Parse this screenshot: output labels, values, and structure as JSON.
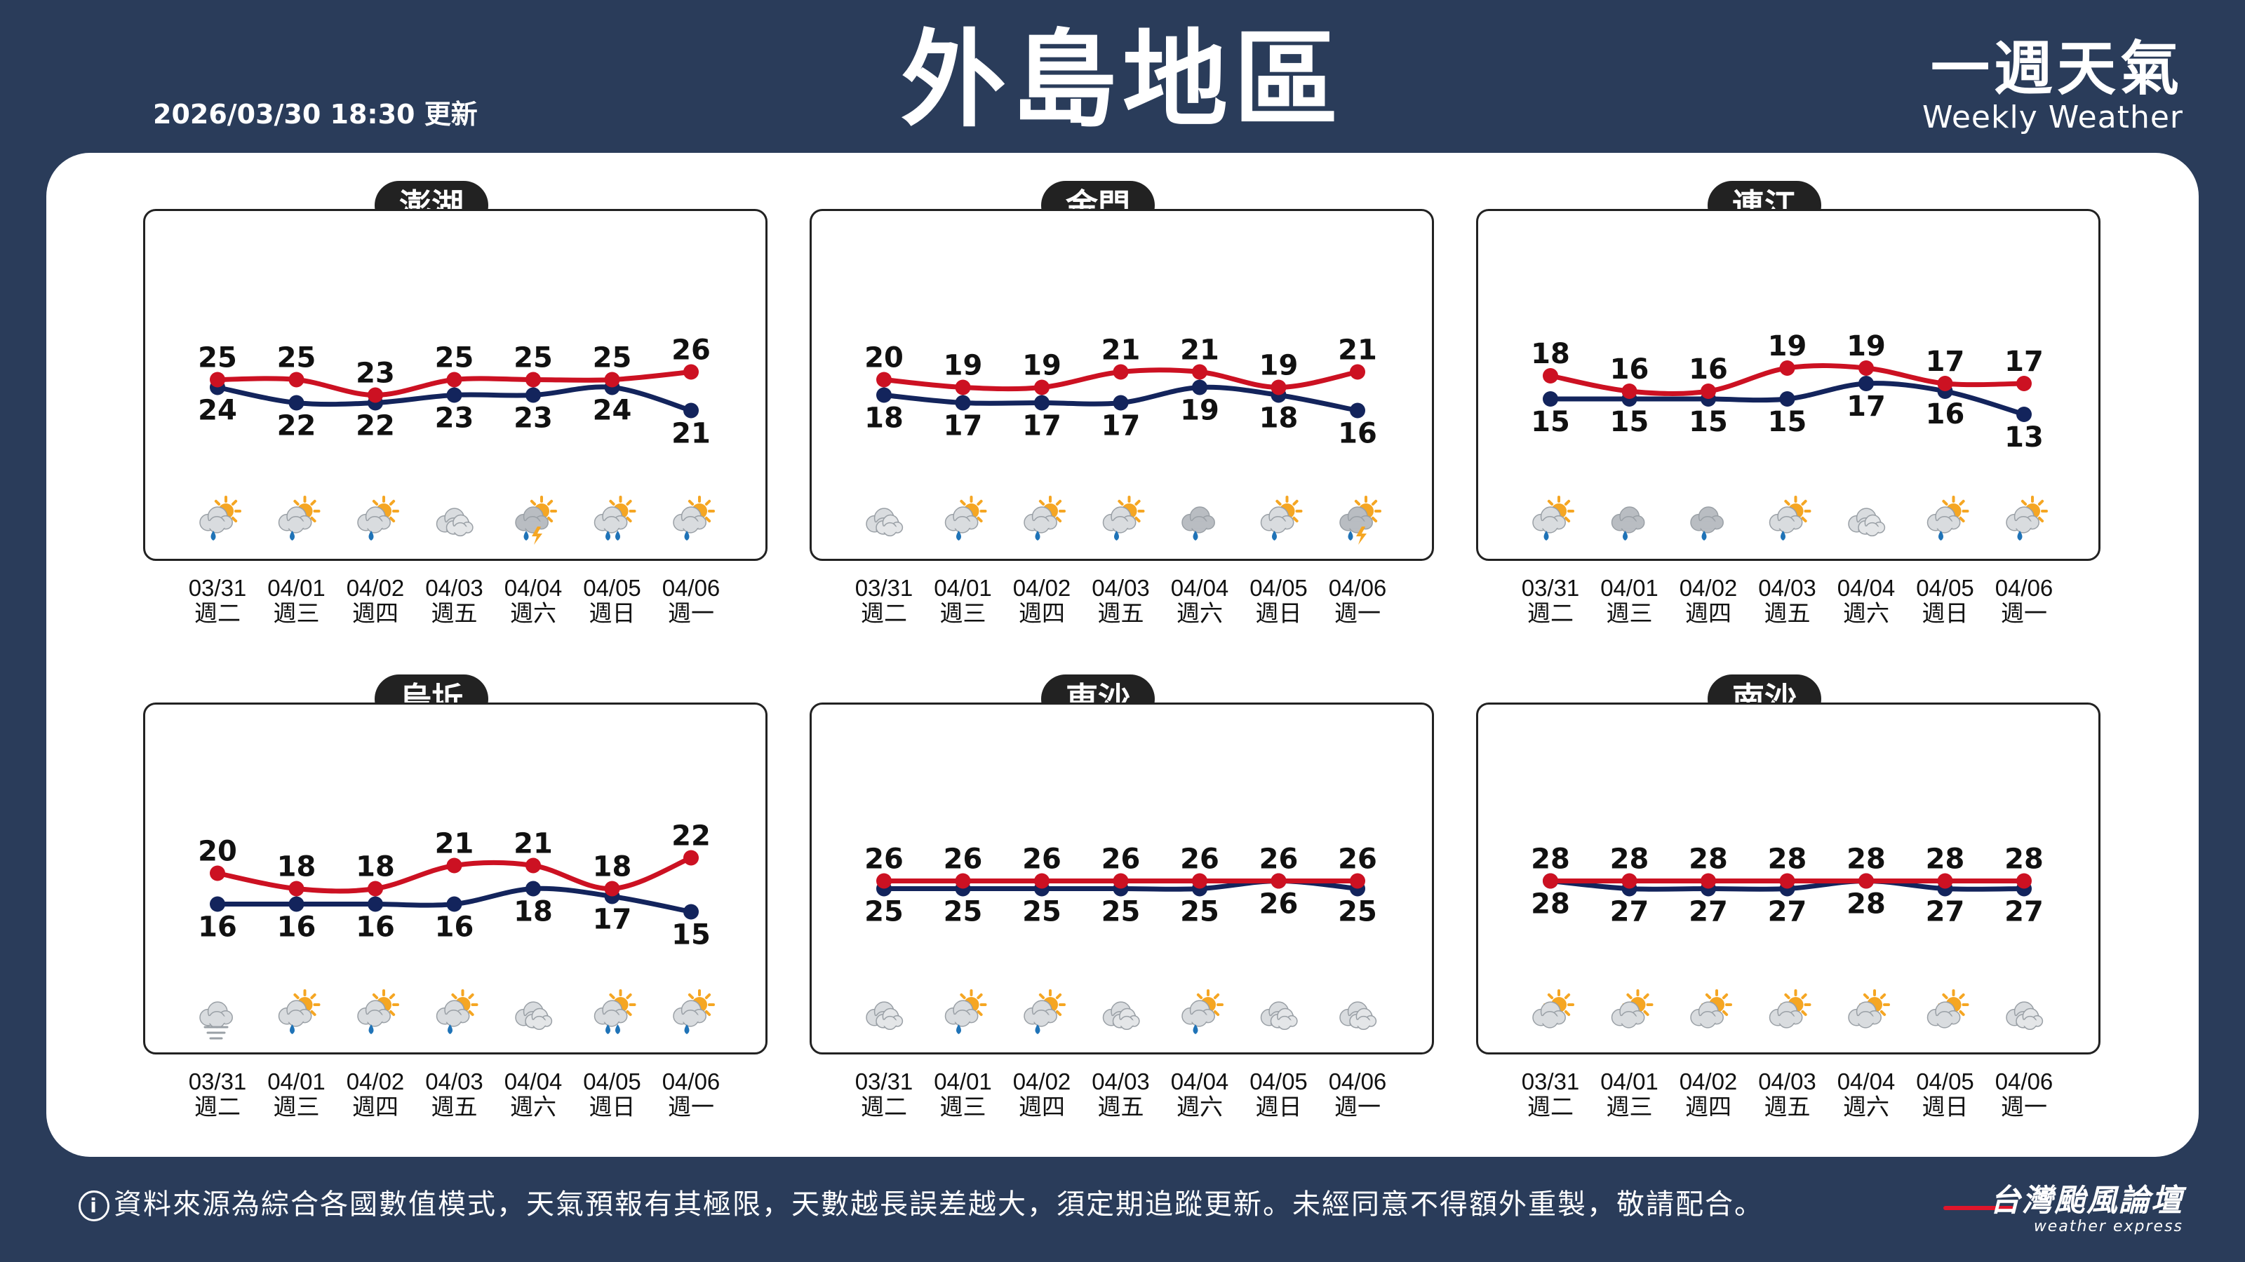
{
  "header": {
    "title": "外島地區",
    "updated": "2026/03/30 18:30 更新",
    "brand_zh": "一週天氣",
    "brand_en": "Weekly Weather"
  },
  "colors": {
    "high": "#cc1122",
    "low": "#13245c"
  },
  "days": [
    {
      "date": "03/31",
      "weekday": "週二"
    },
    {
      "date": "04/01",
      "weekday": "週三"
    },
    {
      "date": "04/02",
      "weekday": "週四"
    },
    {
      "date": "04/03",
      "weekday": "週五"
    },
    {
      "date": "04/04",
      "weekday": "週六"
    },
    {
      "date": "04/05",
      "weekday": "週日"
    },
    {
      "date": "04/06",
      "weekday": "週一"
    }
  ],
  "chart_data": [
    {
      "type": "line",
      "title": "澎湖",
      "categories": [
        "03/31",
        "04/01",
        "04/02",
        "04/03",
        "04/04",
        "04/05",
        "04/06"
      ],
      "series": [
        {
          "values": [
            25,
            25,
            23,
            25,
            25,
            25,
            26
          ]
        },
        {
          "values": [
            24,
            22,
            22,
            23,
            23,
            24,
            21
          ]
        }
      ],
      "icons": [
        "partly-cloudy-rain-icon",
        "partly-cloudy-rain-icon",
        "partly-cloudy-rain-icon",
        "cloudy-icon",
        "thunderstorm-icon",
        "partly-cloudy-heavy-rain-icon",
        "partly-cloudy-rain-icon"
      ]
    },
    {
      "type": "line",
      "title": "金門",
      "categories": [
        "03/31",
        "04/01",
        "04/02",
        "04/03",
        "04/04",
        "04/05",
        "04/06"
      ],
      "series": [
        {
          "values": [
            20,
            19,
            19,
            21,
            21,
            19,
            21
          ]
        },
        {
          "values": [
            18,
            17,
            17,
            17,
            19,
            18,
            16
          ]
        }
      ],
      "icons": [
        "cloudy-icon",
        "partly-cloudy-rain-icon",
        "partly-cloudy-rain-icon",
        "partly-cloudy-rain-icon",
        "cloud-rain-icon",
        "partly-cloudy-rain-icon",
        "thunderstorm-icon"
      ]
    },
    {
      "type": "line",
      "title": "連江",
      "categories": [
        "03/31",
        "04/01",
        "04/02",
        "04/03",
        "04/04",
        "04/05",
        "04/06"
      ],
      "series": [
        {
          "values": [
            18,
            16,
            16,
            19,
            19,
            17,
            17
          ]
        },
        {
          "values": [
            15,
            15,
            15,
            15,
            17,
            16,
            13
          ]
        }
      ],
      "icons": [
        "partly-cloudy-rain-icon",
        "cloud-rain-icon",
        "cloud-rain-icon",
        "partly-cloudy-rain-icon",
        "cloudy-icon",
        "partly-cloudy-rain-icon",
        "partly-cloudy-rain-icon"
      ]
    },
    {
      "type": "line",
      "title": "烏坵",
      "categories": [
        "03/31",
        "04/01",
        "04/02",
        "04/03",
        "04/04",
        "04/05",
        "04/06"
      ],
      "series": [
        {
          "values": [
            20,
            18,
            18,
            21,
            21,
            18,
            22
          ]
        },
        {
          "values": [
            16,
            16,
            16,
            16,
            18,
            17,
            15
          ]
        }
      ],
      "icons": [
        "cloud-wind-icon",
        "partly-cloudy-rain-icon",
        "partly-cloudy-rain-icon",
        "partly-cloudy-rain-icon",
        "cloudy-icon",
        "partly-cloudy-heavy-rain-icon",
        "partly-cloudy-rain-icon"
      ]
    },
    {
      "type": "line",
      "title": "東沙",
      "categories": [
        "03/31",
        "04/01",
        "04/02",
        "04/03",
        "04/04",
        "04/05",
        "04/06"
      ],
      "series": [
        {
          "values": [
            26,
            26,
            26,
            26,
            26,
            26,
            26
          ]
        },
        {
          "values": [
            25,
            25,
            25,
            25,
            25,
            26,
            25
          ]
        }
      ],
      "icons": [
        "cloudy-icon",
        "partly-cloudy-rain-icon",
        "partly-cloudy-rain-icon",
        "cloudy-icon",
        "partly-cloudy-rain-icon",
        "cloudy-icon",
        "cloudy-icon"
      ]
    },
    {
      "type": "line",
      "title": "南沙",
      "categories": [
        "03/31",
        "04/01",
        "04/02",
        "04/03",
        "04/04",
        "04/05",
        "04/06"
      ],
      "series": [
        {
          "values": [
            28,
            28,
            28,
            28,
            28,
            28,
            28
          ]
        },
        {
          "values": [
            28,
            27,
            27,
            27,
            28,
            27,
            27
          ]
        }
      ],
      "icons": [
        "partly-cloudy-icon",
        "partly-cloudy-icon",
        "partly-cloudy-icon",
        "partly-cloudy-icon",
        "partly-cloudy-icon",
        "partly-cloudy-icon",
        "cloudy-icon"
      ]
    }
  ],
  "footer": {
    "disclaimer": "資料來源為綜合各國數值模式，天氣預報有其極限，天數越長誤差越大，須定期追蹤更新。未經同意不得額外重製，敬請配合。",
    "forum_zh": "台灣颱風論壇",
    "forum_en": "weather express"
  }
}
